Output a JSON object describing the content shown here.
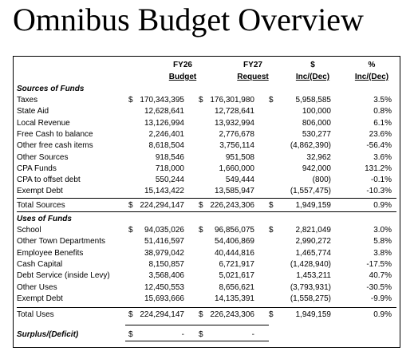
{
  "title": "Omnibus Budget Overview",
  "headers": {
    "col1_top": "FY26",
    "col1_bottom": "Budget",
    "col2_top": "FY27",
    "col2_bottom": "Request",
    "col3_top": "$",
    "col3_bottom": "Inc/(Dec)",
    "col4_top": "%",
    "col4_bottom": "Inc/(Dec)"
  },
  "sources_heading": "Sources of Funds",
  "sources": [
    {
      "label": "Taxes",
      "d1": "$",
      "fy26": "170,343,395",
      "d2": "$",
      "fy27": "176,301,980",
      "d3": "$",
      "inc": "5,958,585",
      "pct": "3.5%"
    },
    {
      "label": "State Aid",
      "d1": "",
      "fy26": "12,628,641",
      "d2": "",
      "fy27": "12,728,641",
      "d3": "",
      "inc": "100,000",
      "pct": "0.8%"
    },
    {
      "label": "Local Revenue",
      "d1": "",
      "fy26": "13,126,994",
      "d2": "",
      "fy27": "13,932,994",
      "d3": "",
      "inc": "806,000",
      "pct": "6.1%"
    },
    {
      "label": "Free Cash to balance",
      "d1": "",
      "fy26": "2,246,401",
      "d2": "",
      "fy27": "2,776,678",
      "d3": "",
      "inc": "530,277",
      "pct": "23.6%"
    },
    {
      "label": "Other free cash items",
      "d1": "",
      "fy26": "8,618,504",
      "d2": "",
      "fy27": "3,756,114",
      "d3": "",
      "inc": "(4,862,390)",
      "pct": "-56.4%"
    },
    {
      "label": "Other Sources",
      "d1": "",
      "fy26": "918,546",
      "d2": "",
      "fy27": "951,508",
      "d3": "",
      "inc": "32,962",
      "pct": "3.6%"
    },
    {
      "label": "CPA Funds",
      "d1": "",
      "fy26": "718,000",
      "d2": "",
      "fy27": "1,660,000",
      "d3": "",
      "inc": "942,000",
      "pct": "131.2%"
    },
    {
      "label": "CPA to offset debt",
      "d1": "",
      "fy26": "550,244",
      "d2": "",
      "fy27": "549,444",
      "d3": "",
      "inc": "(800)",
      "pct": "-0.1%"
    },
    {
      "label": "Exempt Debt",
      "d1": "",
      "fy26": "15,143,422",
      "d2": "",
      "fy27": "13,585,947",
      "d3": "",
      "inc": "(1,557,475)",
      "pct": "-10.3%"
    }
  ],
  "sources_total": {
    "label": "Total Sources",
    "d1": "$",
    "fy26": "224,294,147",
    "d2": "$",
    "fy27": "226,243,306",
    "d3": "$",
    "inc": "1,949,159",
    "pct": "0.9%"
  },
  "uses_heading": "Uses of Funds",
  "uses": [
    {
      "label": "School",
      "d1": "$",
      "fy26": "94,035,026",
      "d2": "$",
      "fy27": "96,856,075",
      "d3": "$",
      "inc": "2,821,049",
      "pct": "3.0%"
    },
    {
      "label": "Other Town Departments",
      "d1": "",
      "fy26": "51,416,597",
      "d2": "",
      "fy27": "54,406,869",
      "d3": "",
      "inc": "2,990,272",
      "pct": "5.8%"
    },
    {
      "label": "Employee Benefits",
      "d1": "",
      "fy26": "38,979,042",
      "d2": "",
      "fy27": "40,444,816",
      "d3": "",
      "inc": "1,465,774",
      "pct": "3.8%"
    },
    {
      "label": "Cash Capital",
      "d1": "",
      "fy26": "8,150,857",
      "d2": "",
      "fy27": "6,721,917",
      "d3": "",
      "inc": "(1,428,940)",
      "pct": "-17.5%"
    },
    {
      "label": "Debt Service (inside Levy)",
      "d1": "",
      "fy26": "3,568,406",
      "d2": "",
      "fy27": "5,021,617",
      "d3": "",
      "inc": "1,453,211",
      "pct": "40.7%"
    },
    {
      "label": "Other Uses",
      "d1": "",
      "fy26": "12,450,553",
      "d2": "",
      "fy27": "8,656,621",
      "d3": "",
      "inc": "(3,793,931)",
      "pct": "-30.5%"
    },
    {
      "label": "Exempt Debt",
      "d1": "",
      "fy26": "15,693,666",
      "d2": "",
      "fy27": "14,135,391",
      "d3": "",
      "inc": "(1,558,275)",
      "pct": "-9.9%"
    }
  ],
  "uses_total": {
    "label": "Total Uses",
    "d1": "$",
    "fy26": "224,294,147",
    "d2": "$",
    "fy27": "226,243,306",
    "d3": "$",
    "inc": "1,949,159",
    "pct": "0.9%"
  },
  "surplus": {
    "label": "Surplus/(Deficit)",
    "d1": "$",
    "fy26": "-",
    "d2": "$",
    "fy27": "-"
  }
}
